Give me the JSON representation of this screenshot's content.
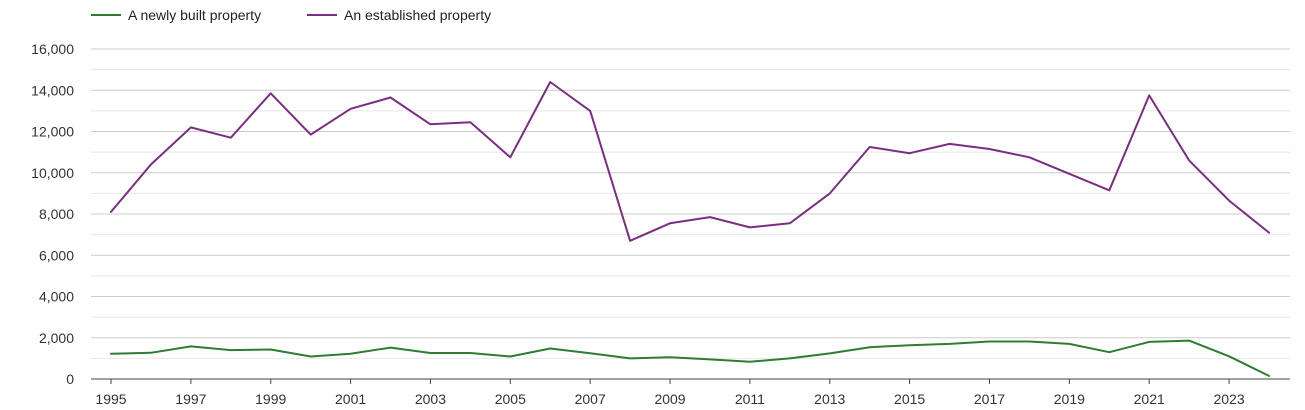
{
  "chart_data": {
    "type": "line",
    "title": "",
    "xlabel": "",
    "ylabel": "",
    "legend_position": "top-left",
    "grid": true,
    "x": [
      1995,
      1996,
      1997,
      1998,
      1999,
      2000,
      2001,
      2002,
      2003,
      2004,
      2005,
      2006,
      2007,
      2008,
      2009,
      2010,
      2011,
      2012,
      2013,
      2014,
      2015,
      2016,
      2017,
      2018,
      2019,
      2020,
      2021,
      2022,
      2023,
      2024
    ],
    "xtick_labels": [
      "1995",
      "1997",
      "1999",
      "2001",
      "2003",
      "2005",
      "2007",
      "2009",
      "2011",
      "2013",
      "2015",
      "2017",
      "2019",
      "2021",
      "2023"
    ],
    "ylim": [
      0,
      16000
    ],
    "ytick_labels": [
      "0",
      "2,000",
      "4,000",
      "6,000",
      "8,000",
      "10,000",
      "12,000",
      "14,000",
      "16,000"
    ],
    "series": [
      {
        "name": "A newly built property",
        "color": "#2e7d32",
        "values": [
          1220,
          1270,
          1580,
          1400,
          1430,
          1090,
          1220,
          1520,
          1260,
          1260,
          1090,
          1480,
          1250,
          1000,
          1050,
          950,
          840,
          1000,
          1240,
          1540,
          1640,
          1700,
          1820,
          1820,
          1700,
          1300,
          1800,
          1860,
          1100,
          150
        ]
      },
      {
        "name": "An established property",
        "color": "#7b2d84",
        "values": [
          8100,
          10400,
          12200,
          11700,
          13850,
          11850,
          13100,
          13650,
          12350,
          12450,
          10750,
          14400,
          13000,
          6700,
          7550,
          7850,
          7350,
          7550,
          9000,
          11250,
          10950,
          11400,
          11150,
          10750,
          9950,
          9150,
          13750,
          10600,
          8650,
          7100
        ]
      }
    ]
  }
}
